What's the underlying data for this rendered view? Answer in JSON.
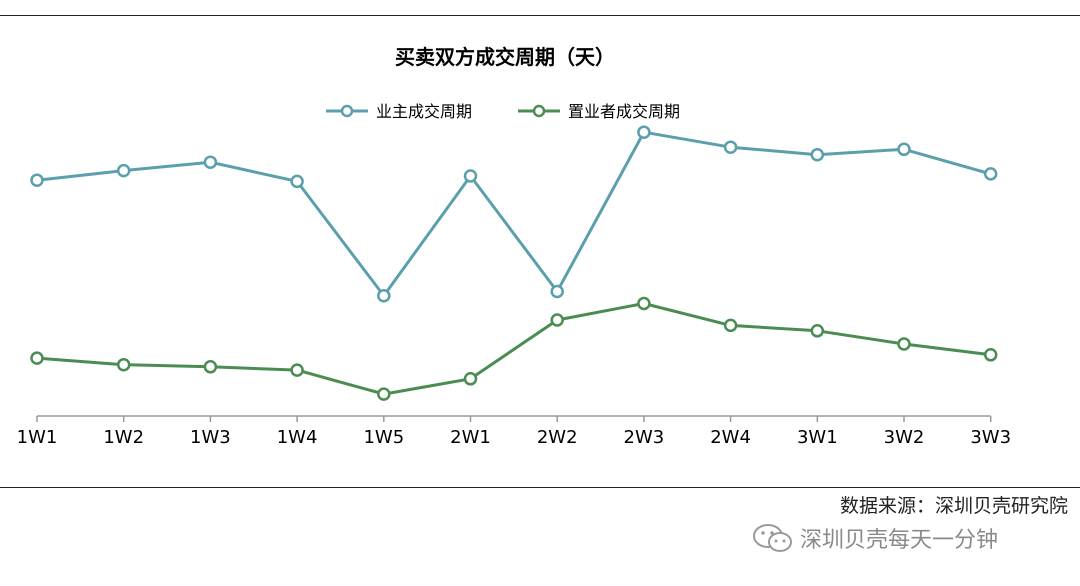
{
  "chart_data": {
    "type": "line",
    "title": "买卖双方成交周期（天）",
    "categories": [
      "1W1",
      "1W2",
      "1W3",
      "1W4",
      "1W5",
      "2W1",
      "2W2",
      "2W3",
      "2W4",
      "3W1",
      "3W2",
      "3W3"
    ],
    "ylim": [
      0,
      100
    ],
    "grid": false,
    "legend_position": "top-center",
    "series": [
      {
        "name": "业主成交周期",
        "color": "#5b9fad",
        "values": [
          78.6,
          81.8,
          84.6,
          78.2,
          40.1,
          80.0,
          41.5,
          94.6,
          89.6,
          87.1,
          88.9,
          80.7
        ]
      },
      {
        "name": "置业者成交周期",
        "color": "#4a8c52",
        "values": [
          19.3,
          17.1,
          16.4,
          15.3,
          7.3,
          12.4,
          32.0,
          37.5,
          30.2,
          28.4,
          24.0,
          20.4
        ]
      }
    ]
  },
  "footer": {
    "source": "数据来源：深圳贝壳研究院",
    "watermark": "深圳贝壳每天一分钟",
    "watermark_icon": "wechat-icon"
  }
}
